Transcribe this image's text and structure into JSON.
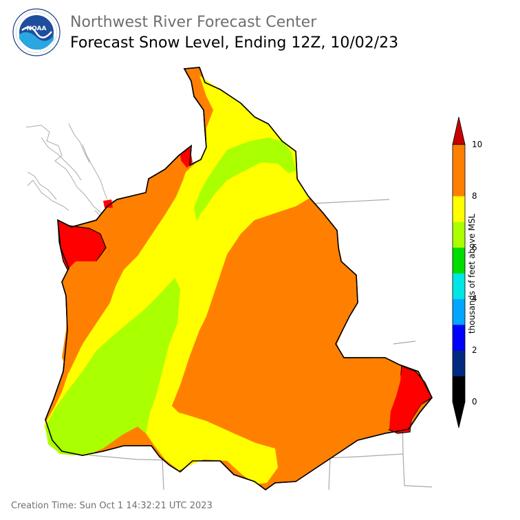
{
  "header": {
    "org": "Northwest River Forecast Center",
    "title": "Forecast Snow Level, Ending 12Z, 10/02/23"
  },
  "logo": {
    "icon": "noaa-logo",
    "text": "NOAA"
  },
  "legend": {
    "label": "thousands of feet above MSL",
    "ticks": [
      "0",
      "2",
      "4",
      "6",
      "8",
      "10"
    ],
    "colors": [
      "#000000",
      "#002a80",
      "#0000ff",
      "#00a6ff",
      "#00e6e6",
      "#00dd00",
      "#aaff00",
      "#ffff00",
      "#ff8000",
      "#ff8000",
      "#ff0000",
      "#c80000"
    ]
  },
  "footer": {
    "creation_time": "Creation Time: Sun Oct 1 14:32:21 UTC 2023"
  }
}
